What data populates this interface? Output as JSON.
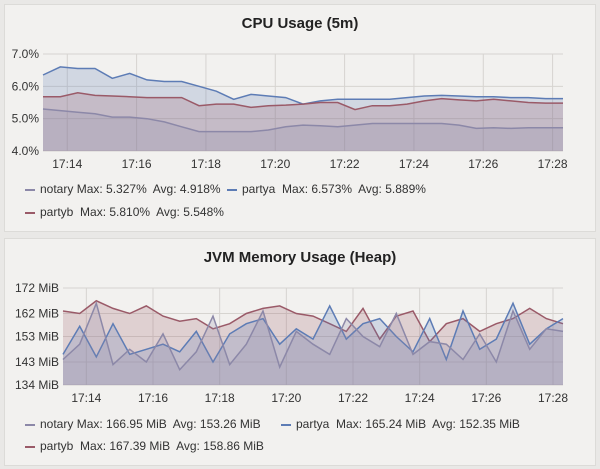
{
  "chart_data": [
    {
      "type": "area",
      "title": "CPU Usage (5m)",
      "ylim": [
        4.0,
        7.0
      ],
      "yticks": [
        "4.0%",
        "5.0%",
        "6.0%",
        "7.0%"
      ],
      "ytick_values": [
        4,
        5,
        6,
        7
      ],
      "xticks": [
        "17:14",
        "17:16",
        "17:18",
        "17:20",
        "17:22",
        "17:24",
        "17:26",
        "17:28"
      ],
      "xtick_values": [
        14,
        16,
        18,
        20,
        22,
        24,
        26,
        28
      ],
      "xrange": [
        13.3,
        28.3
      ],
      "series": [
        {
          "name": "partya",
          "color": "#5d7cb5",
          "max": "Max: 6.573%",
          "avg": "Avg: 5.889%",
          "values": [
            6.35,
            6.6,
            6.55,
            6.55,
            6.25,
            6.4,
            6.2,
            6.15,
            6.15,
            6.0,
            5.85,
            5.6,
            5.75,
            5.7,
            5.65,
            5.45,
            5.55,
            5.6,
            5.6,
            5.6,
            5.6,
            5.65,
            5.7,
            5.72,
            5.7,
            5.68,
            5.68,
            5.65,
            5.65,
            5.62,
            5.62
          ]
        },
        {
          "name": "partyb",
          "color": "#9a5a68",
          "max": "Max: 5.810%",
          "avg": "Avg: 5.548%",
          "values": [
            5.68,
            5.68,
            5.8,
            5.72,
            5.7,
            5.68,
            5.65,
            5.65,
            5.65,
            5.4,
            5.45,
            5.45,
            5.35,
            5.4,
            5.42,
            5.45,
            5.5,
            5.5,
            5.28,
            5.4,
            5.4,
            5.45,
            5.55,
            5.62,
            5.58,
            5.55,
            5.6,
            5.55,
            5.5,
            5.48,
            5.48
          ]
        },
        {
          "name": "notary",
          "color": "#8c88a8",
          "max": "Max: 5.327%",
          "avg": "Avg: 4.918%",
          "values": [
            5.3,
            5.25,
            5.2,
            5.15,
            5.05,
            5.05,
            5.0,
            4.9,
            4.75,
            4.6,
            4.6,
            4.6,
            4.6,
            4.65,
            4.75,
            4.8,
            4.78,
            4.75,
            4.8,
            4.85,
            4.85,
            4.85,
            4.85,
            4.85,
            4.8,
            4.7,
            4.72,
            4.7,
            4.72,
            4.72,
            4.72
          ]
        }
      ]
    },
    {
      "type": "area",
      "title": "JVM Memory Usage (Heap)",
      "ylim": [
        134,
        172
      ],
      "yticks": [
        "134 MiB",
        "143 MiB",
        "153 MiB",
        "162 MiB",
        "172 MiB"
      ],
      "ytick_values": [
        134,
        143,
        153,
        162,
        172
      ],
      "xticks": [
        "17:14",
        "17:16",
        "17:18",
        "17:20",
        "17:22",
        "17:24",
        "17:26",
        "17:28"
      ],
      "xtick_values": [
        14,
        16,
        18,
        20,
        22,
        24,
        26,
        28
      ],
      "xrange": [
        13.3,
        28.3
      ],
      "series": [
        {
          "name": "partyb",
          "color": "#9a5a68",
          "max": "Max: 167.39 MiB",
          "avg": "Avg: 158.86 MiB",
          "values": [
            163,
            162,
            167,
            164,
            162,
            165,
            161,
            159,
            160,
            156,
            158,
            162,
            164,
            165,
            162,
            161,
            158,
            155,
            164,
            152,
            161,
            163,
            151,
            158,
            160,
            155,
            158,
            160,
            164,
            160,
            158
          ]
        },
        {
          "name": "partya",
          "color": "#5d7cb5",
          "max": "Max: 165.24 MiB",
          "avg": "Avg: 152.35 MiB",
          "values": [
            146,
            157,
            145,
            158,
            146,
            148,
            150,
            147,
            155,
            143,
            154,
            158,
            160,
            150,
            156,
            152,
            165,
            152,
            158,
            160,
            153,
            147,
            160,
            144,
            163,
            148,
            152,
            166,
            150,
            156,
            160
          ]
        },
        {
          "name": "notary",
          "color": "#8c88a8",
          "max": "Max: 166.95 MiB",
          "avg": "Avg: 153.26 MiB",
          "values": [
            144,
            150,
            166,
            142,
            148,
            143,
            154,
            140,
            147,
            161,
            142,
            150,
            163,
            141,
            155,
            150,
            146,
            160,
            153,
            149,
            162,
            146,
            151,
            150,
            144,
            154,
            143,
            163,
            148,
            156,
            155
          ]
        }
      ]
    }
  ]
}
